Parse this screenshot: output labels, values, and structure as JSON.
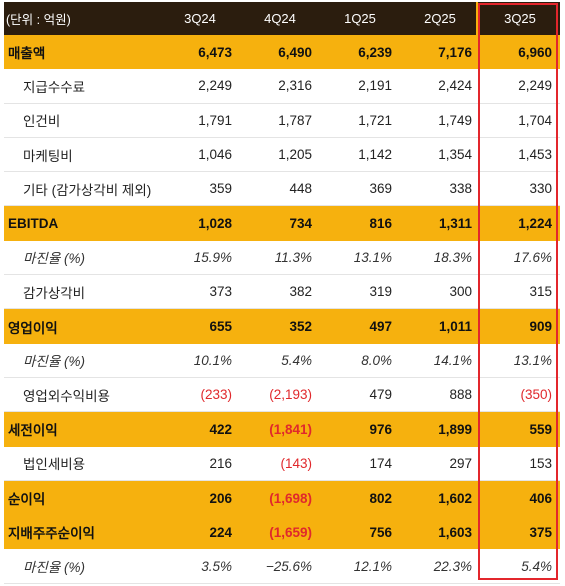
{
  "header": {
    "unit": "(단위 : 억원)",
    "periods": [
      "3Q24",
      "4Q24",
      "1Q25",
      "2Q25",
      "3Q25"
    ]
  },
  "rows": [
    {
      "label": "매출액",
      "type": "major",
      "values": [
        "6,473",
        "6,490",
        "6,239",
        "7,176",
        "6,960"
      ]
    },
    {
      "label": "지급수수료",
      "type": "minor",
      "values": [
        "2,249",
        "2,316",
        "2,191",
        "2,424",
        "2,249"
      ]
    },
    {
      "label": "인건비",
      "type": "minor",
      "values": [
        "1,791",
        "1,787",
        "1,721",
        "1,749",
        "1,704"
      ]
    },
    {
      "label": "마케팅비",
      "type": "minor",
      "values": [
        "1,046",
        "1,205",
        "1,142",
        "1,354",
        "1,453"
      ]
    },
    {
      "label": "기타 (감가상각비 제외)",
      "type": "minor",
      "values": [
        "359",
        "448",
        "369",
        "338",
        "330"
      ]
    },
    {
      "label": "EBITDA",
      "type": "major",
      "values": [
        "1,028",
        "734",
        "816",
        "1,311",
        "1,224"
      ]
    },
    {
      "label": "마진율 (%)",
      "type": "margin",
      "values": [
        "15.9%",
        "11.3%",
        "13.1%",
        "18.3%",
        "17.6%"
      ]
    },
    {
      "label": "감가상각비",
      "type": "minor",
      "values": [
        "373",
        "382",
        "319",
        "300",
        "315"
      ]
    },
    {
      "label": "영업이익",
      "type": "major",
      "values": [
        "655",
        "352",
        "497",
        "1,011",
        "909"
      ]
    },
    {
      "label": "마진율 (%)",
      "type": "margin",
      "values": [
        "10.1%",
        "5.4%",
        "8.0%",
        "14.1%",
        "13.1%"
      ]
    },
    {
      "label": "영업외수익비용",
      "type": "minor",
      "values": [
        "(233)",
        "(2,193)",
        "479",
        "888",
        "(350)"
      ]
    },
    {
      "label": "세전이익",
      "type": "major",
      "values": [
        "422",
        "(1,841)",
        "976",
        "1,899",
        "559"
      ]
    },
    {
      "label": "법인세비용",
      "type": "minor",
      "values": [
        "216",
        "(143)",
        "174",
        "297",
        "153"
      ]
    },
    {
      "label": "순이익",
      "type": "major",
      "values": [
        "206",
        "(1,698)",
        "802",
        "1,602",
        "406"
      ]
    },
    {
      "label": "지배주주순이익",
      "type": "major",
      "values": [
        "224",
        "(1,659)",
        "756",
        "1,603",
        "375"
      ]
    },
    {
      "label": "마진율 (%)",
      "type": "margin",
      "values": [
        "3.5%",
        "−25.6%",
        "12.1%",
        "22.3%",
        "5.4%"
      ]
    }
  ],
  "colors": {
    "header_bg": "#2b1d0e",
    "major_bg": "#f6b10e",
    "negative": "#e0282c",
    "highlight": "#e3262c"
  }
}
